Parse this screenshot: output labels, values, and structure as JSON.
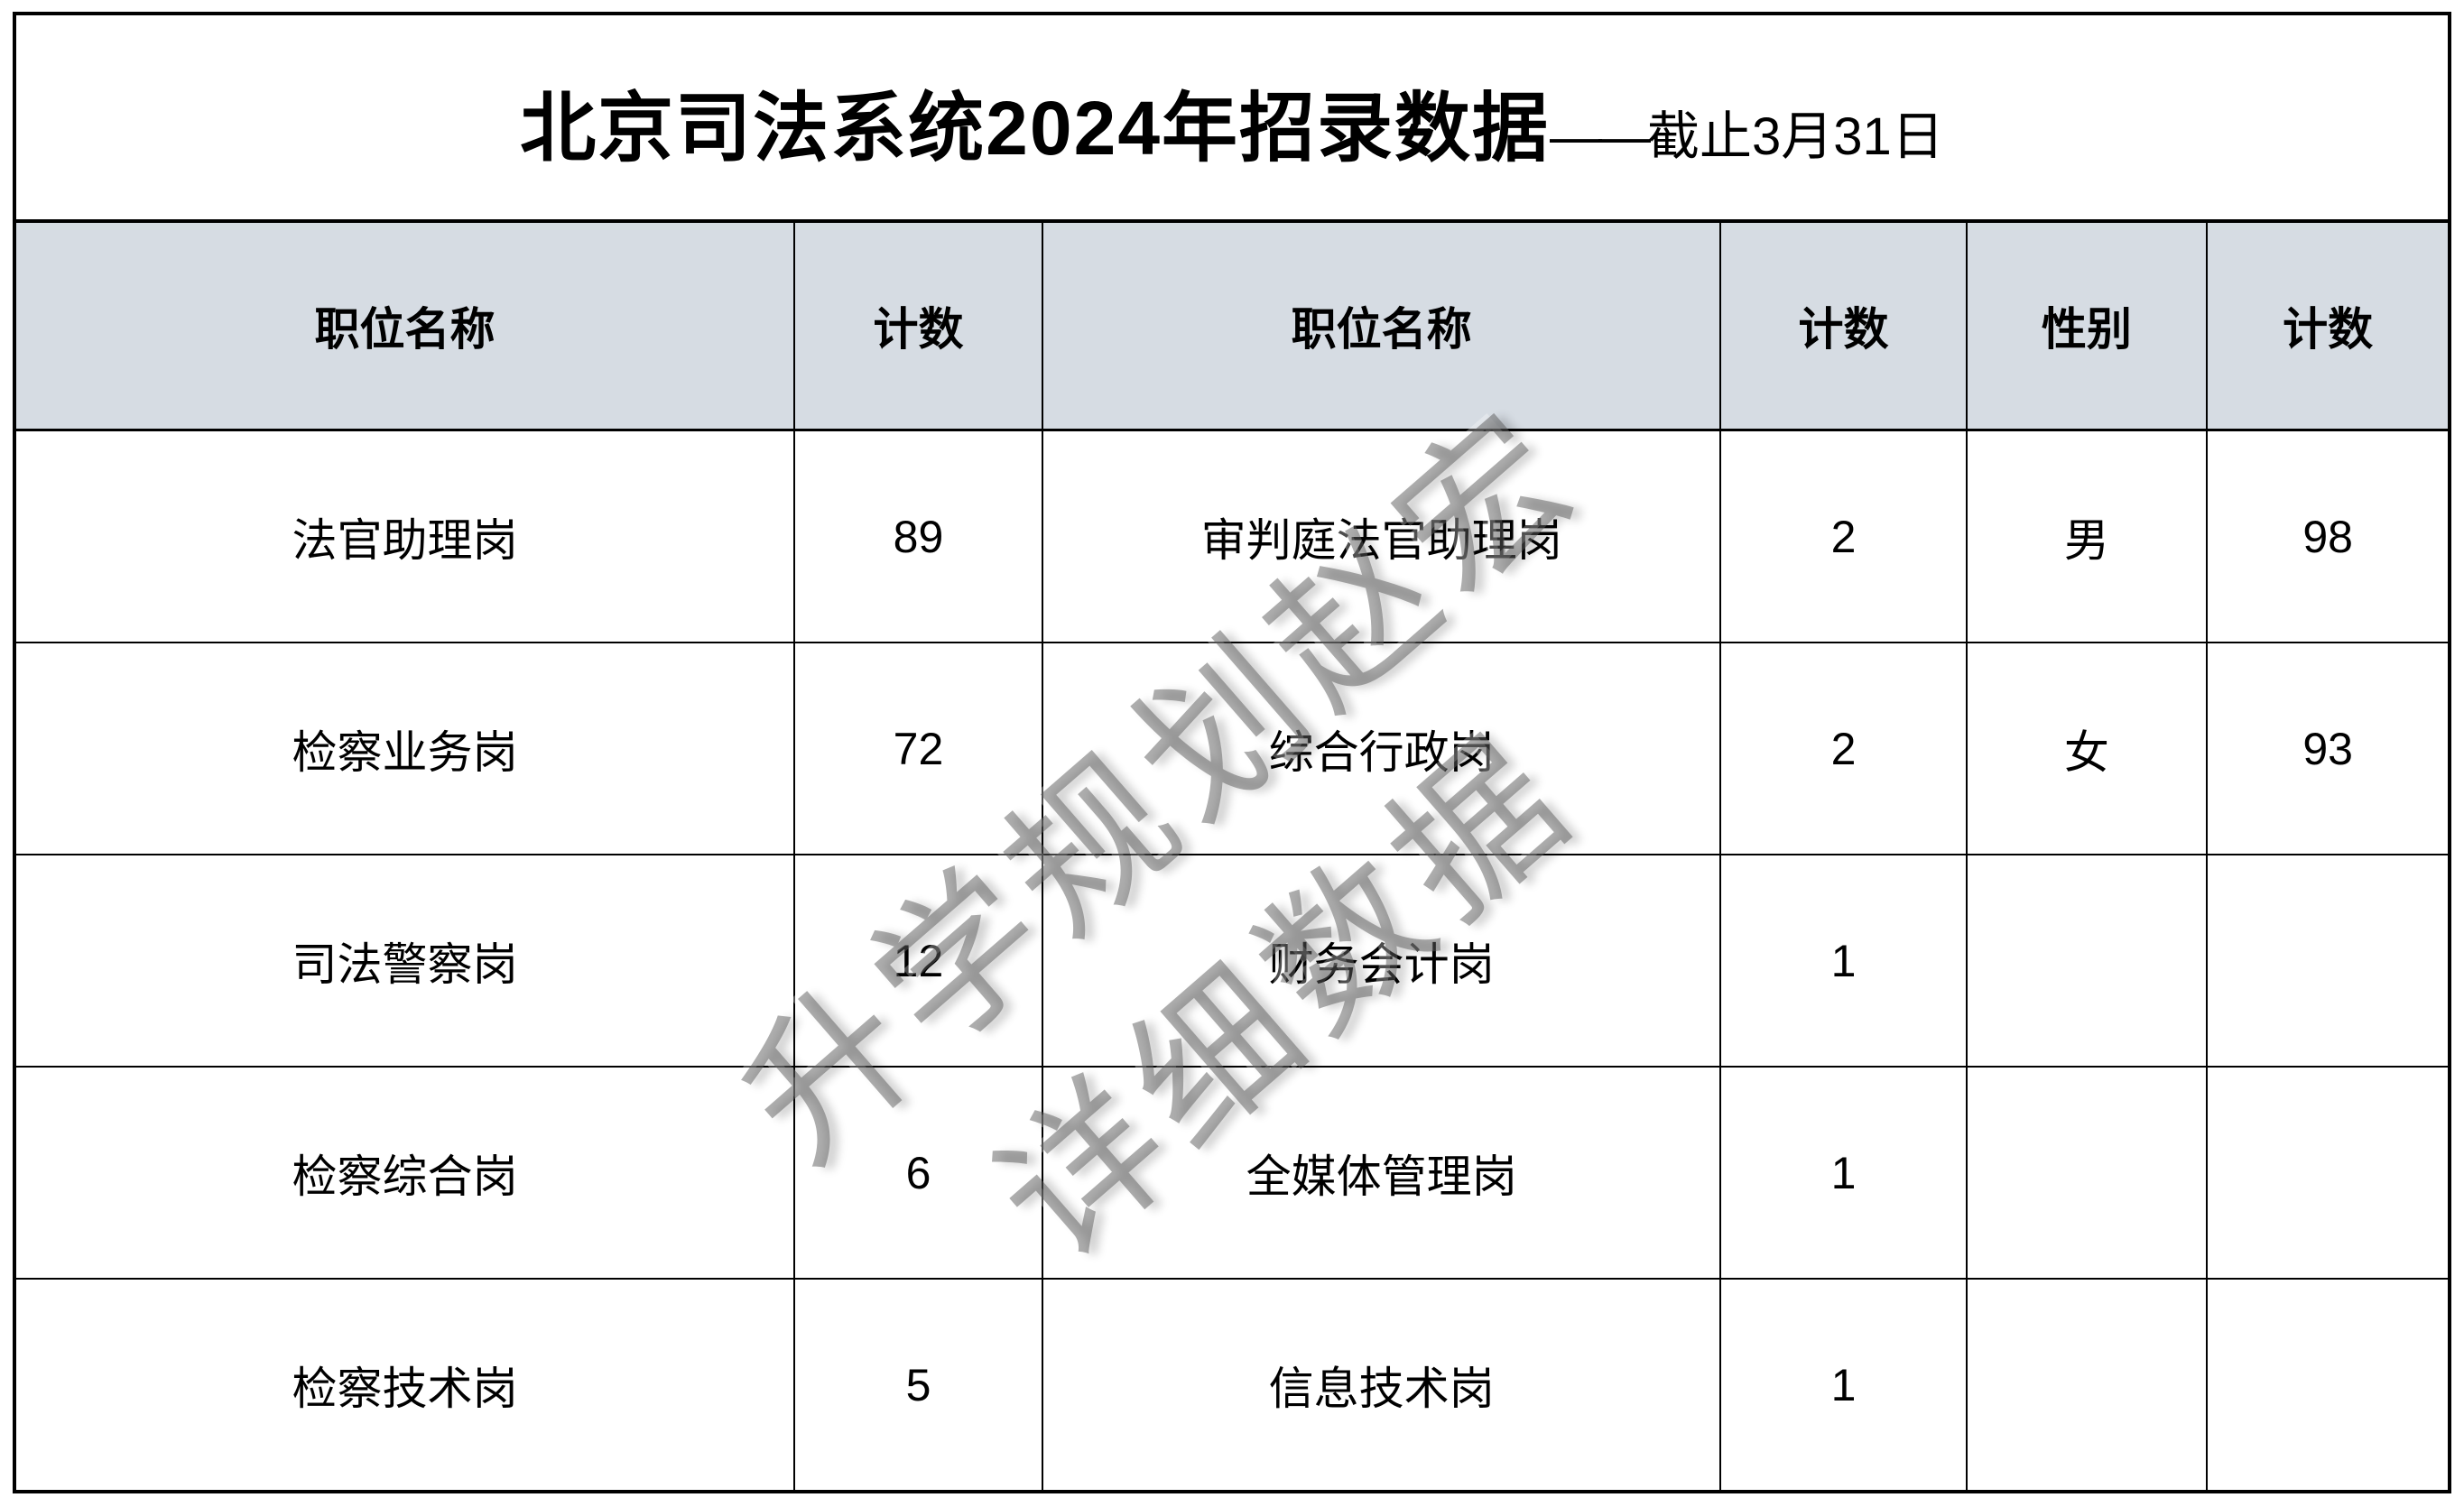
{
  "title": {
    "main": "北京司法系统2024年招录数据",
    "dash": "——",
    "subtitle": "截止3月31日"
  },
  "table": {
    "headers": [
      "职位名称",
      "计数",
      "职位名称",
      "计数",
      "性别",
      "计数"
    ],
    "col_widths_pct": [
      32.0,
      10.2,
      27.9,
      10.1,
      9.9,
      9.9
    ],
    "rows": [
      [
        "法官助理岗",
        "89",
        "审判庭法官助理岗",
        "2",
        "男",
        "98"
      ],
      [
        "检察业务岗",
        "72",
        "综合行政岗",
        "2",
        "女",
        "93"
      ],
      [
        "司法警察岗",
        "12",
        "财务会计岗",
        "1",
        "",
        ""
      ],
      [
        "检察综合岗",
        "6",
        "全媒体管理岗",
        "1",
        "",
        ""
      ],
      [
        "检察技术岗",
        "5",
        "信息技术岗",
        "1",
        "",
        ""
      ]
    ]
  },
  "watermark": {
    "line1": "升学规划赵宏",
    "line2": "详细数据"
  },
  "colors": {
    "header_bg": "#d6dce3",
    "border": "#000000",
    "page_bg": "#ffffff",
    "watermark_gray": "#9a9a9a"
  }
}
